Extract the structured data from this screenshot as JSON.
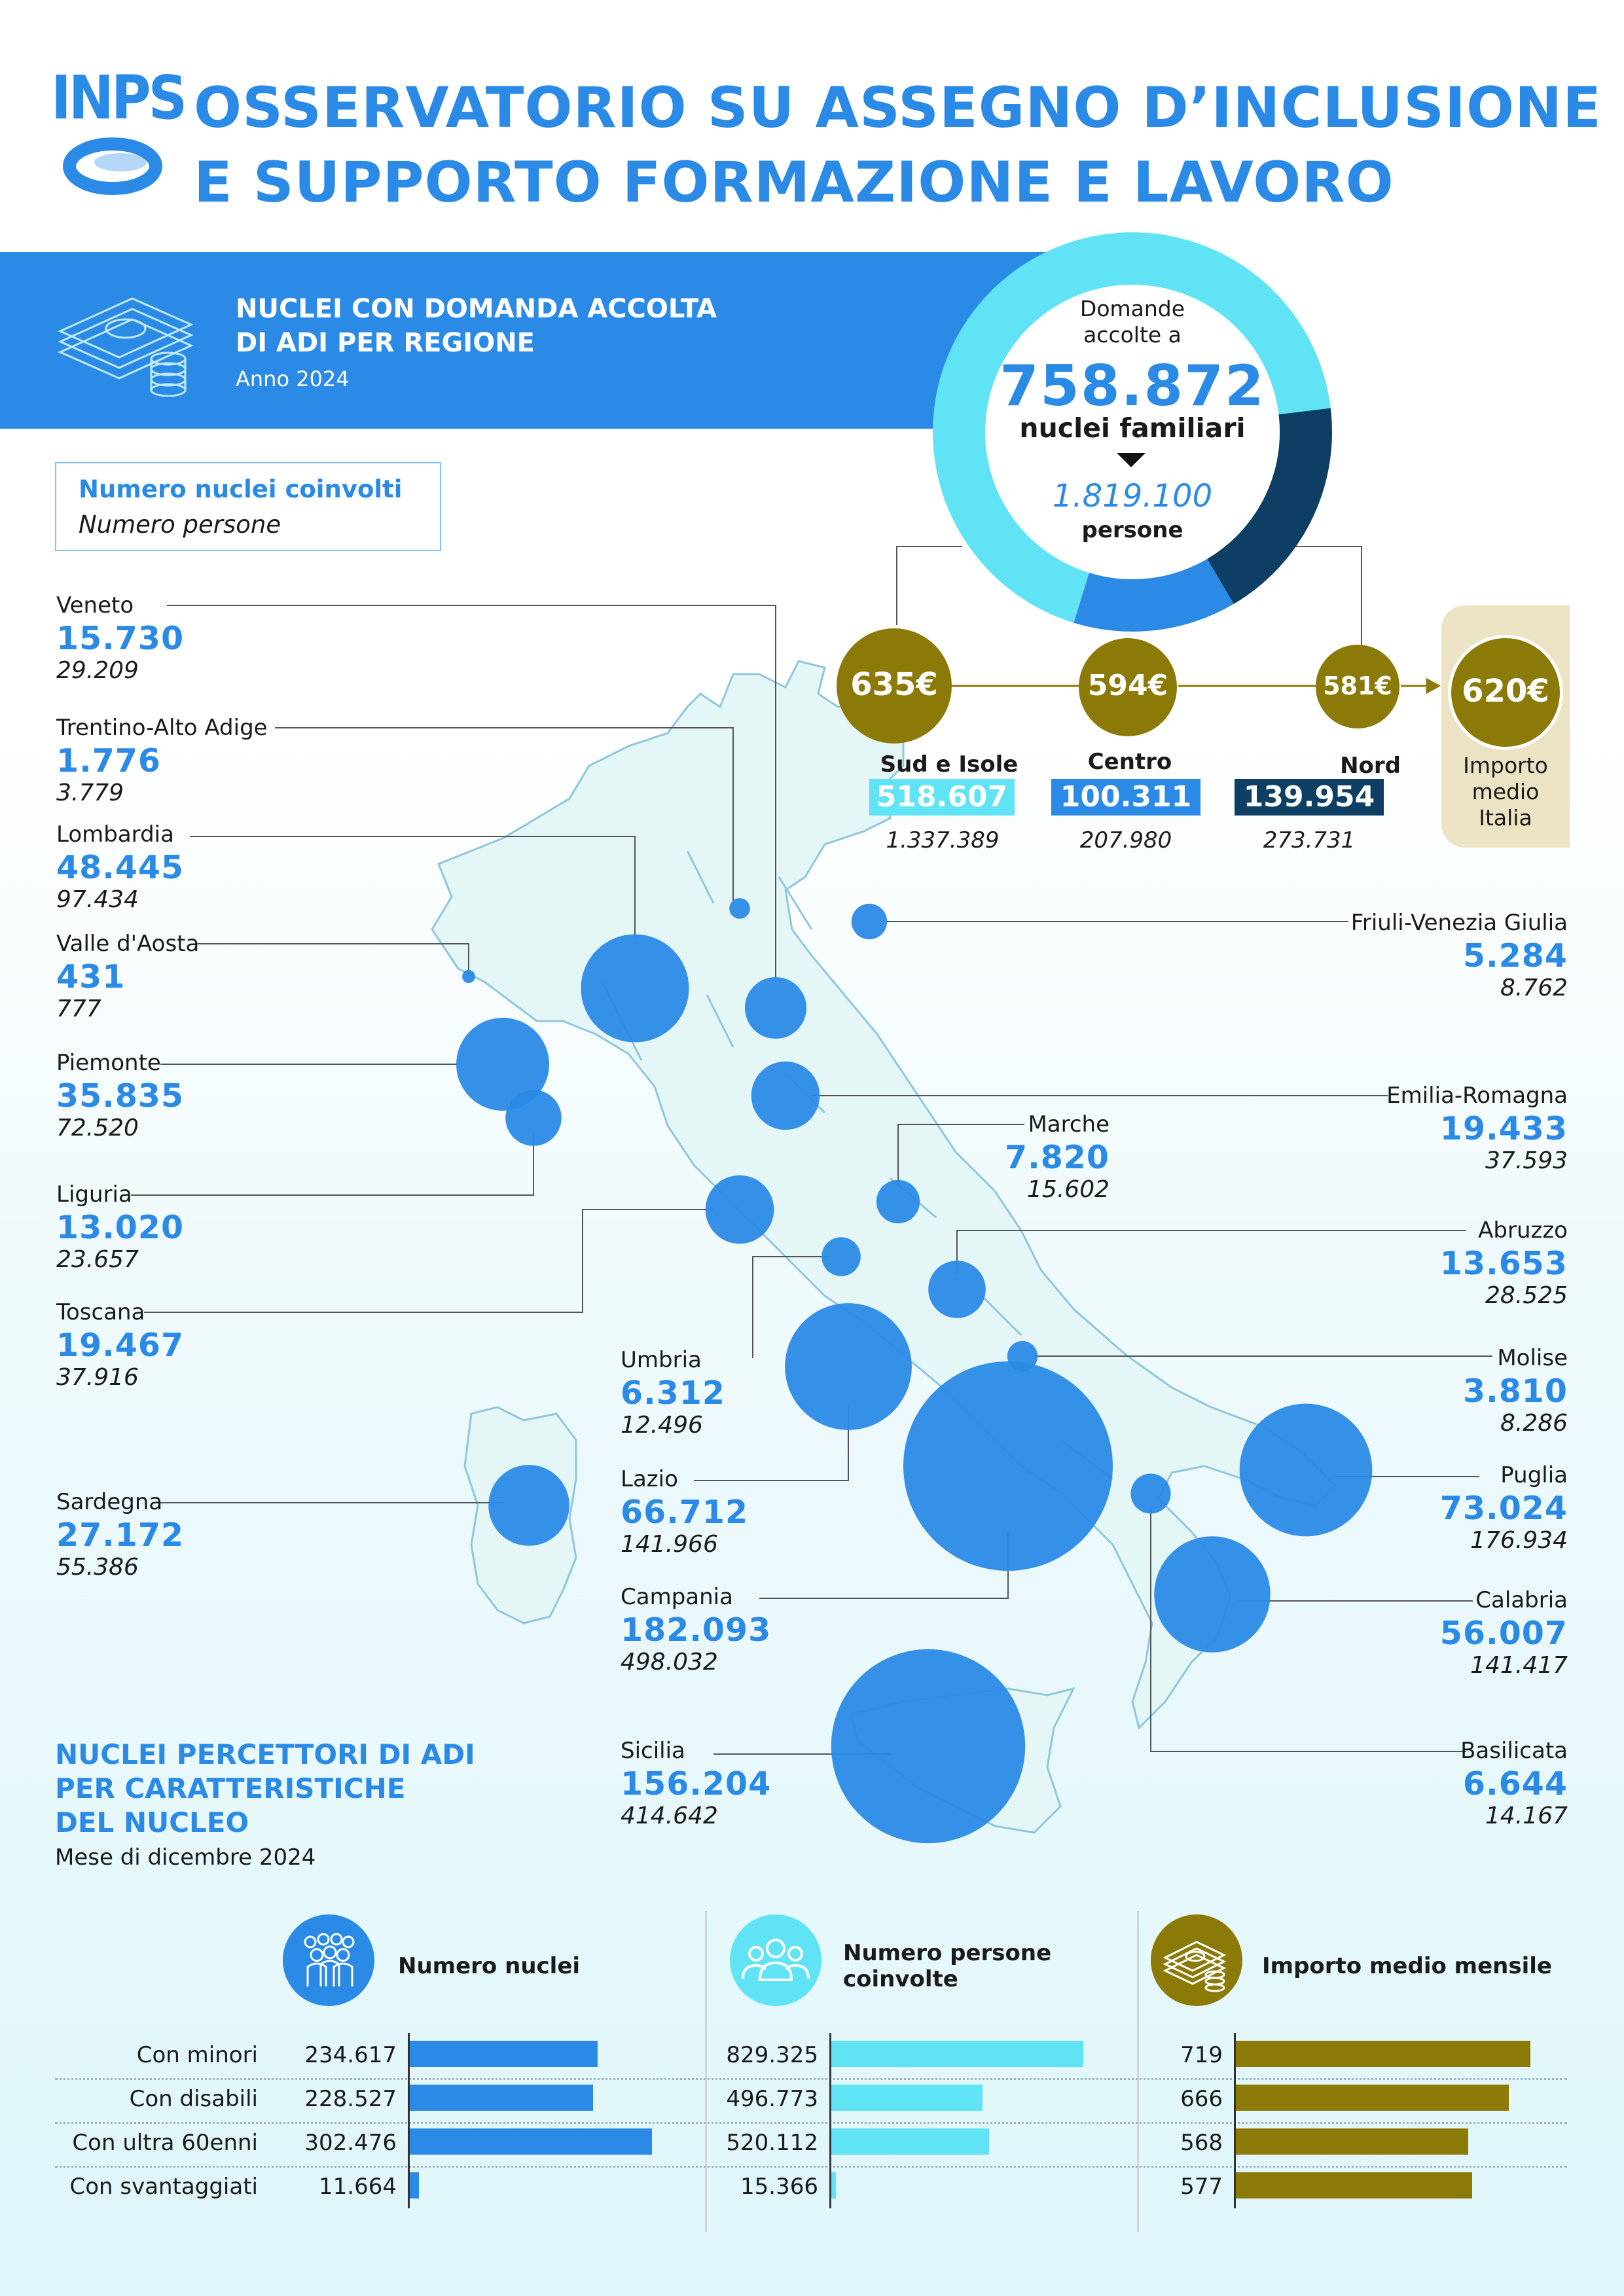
{
  "header": {
    "logo": "INPS",
    "title_line1": "OSSERVATORIO SU ASSEGNO D’INCLUSIONE",
    "title_line2": "E SUPPORTO FORMAZIONE E LAVORO"
  },
  "band": {
    "title_line1": "NUCLEI CON DOMANDA ACCOLTA",
    "title_line2": "DI ADI PER REGIONE",
    "year": "Anno 2024",
    "icon": "money-coins-icon"
  },
  "legend": {
    "line1": "Numero nuclei coinvolti",
    "line2": "Numero persone"
  },
  "donut": {
    "line1": "Domande",
    "line2": "accolte a",
    "total": "758.872",
    "unit": "nuclei familiari",
    "persons": "1.819.100",
    "persons_label": "persone"
  },
  "macro": {
    "sud": {
      "amount": "635€",
      "label": "Sud e Isole",
      "nuclei": "518.607",
      "persone": "1.337.389"
    },
    "centro": {
      "amount": "594€",
      "label": "Centro",
      "nuclei": "100.311",
      "persone": "207.980"
    },
    "nord": {
      "amount": "581€",
      "label": "Nord",
      "nuclei": "139.954",
      "persone": "273.731"
    },
    "italia": {
      "amount": "620€",
      "line1": "Importo",
      "line2": "medio",
      "line3": "Italia"
    }
  },
  "chart_data": [
    {
      "type": "bubble-map",
      "title": "NUCLEI CON DOMANDA ACCOLTA DI ADI PER REGIONE",
      "subtitle": "Anno 2024",
      "regions": [
        {
          "name": "Veneto",
          "nuclei": 15730,
          "nuclei_label": "15.730",
          "persone_label": "29.209"
        },
        {
          "name": "Trentino-Alto Adige",
          "nuclei": 1776,
          "nuclei_label": "1.776",
          "persone_label": "3.779"
        },
        {
          "name": "Lombardia",
          "nuclei": 48445,
          "nuclei_label": "48.445",
          "persone_label": "97.434"
        },
        {
          "name": "Valle d'Aosta",
          "nuclei": 431,
          "nuclei_label": "431",
          "persone_label": "777"
        },
        {
          "name": "Piemonte",
          "nuclei": 35835,
          "nuclei_label": "35.835",
          "persone_label": "72.520"
        },
        {
          "name": "Liguria",
          "nuclei": 13020,
          "nuclei_label": "13.020",
          "persone_label": "23.657"
        },
        {
          "name": "Toscana",
          "nuclei": 19467,
          "nuclei_label": "19.467",
          "persone_label": "37.916"
        },
        {
          "name": "Sardegna",
          "nuclei": 27172,
          "nuclei_label": "27.172",
          "persone_label": "55.386"
        },
        {
          "name": "Umbria",
          "nuclei": 6312,
          "nuclei_label": "6.312",
          "persone_label": "12.496"
        },
        {
          "name": "Lazio",
          "nuclei": 66712,
          "nuclei_label": "66.712",
          "persone_label": "141.966"
        },
        {
          "name": "Campania",
          "nuclei": 182093,
          "nuclei_label": "182.093",
          "persone_label": "498.032"
        },
        {
          "name": "Sicilia",
          "nuclei": 156204,
          "nuclei_label": "156.204",
          "persone_label": "414.642"
        },
        {
          "name": "Friuli-Venezia Giulia",
          "nuclei": 5284,
          "nuclei_label": "5.284",
          "persone_label": "8.762"
        },
        {
          "name": "Emilia-Romagna",
          "nuclei": 19433,
          "nuclei_label": "19.433",
          "persone_label": "37.593"
        },
        {
          "name": "Marche",
          "nuclei": 7820,
          "nuclei_label": "7.820",
          "persone_label": "15.602"
        },
        {
          "name": "Abruzzo",
          "nuclei": 13653,
          "nuclei_label": "13.653",
          "persone_label": "28.525"
        },
        {
          "name": "Molise",
          "nuclei": 3810,
          "nuclei_label": "3.810",
          "persone_label": "8.286"
        },
        {
          "name": "Puglia",
          "nuclei": 73024,
          "nuclei_label": "73.024",
          "persone_label": "176.934"
        },
        {
          "name": "Calabria",
          "nuclei": 56007,
          "nuclei_label": "56.007",
          "persone_label": "141.417"
        },
        {
          "name": "Basilicata",
          "nuclei": 6644,
          "nuclei_label": "6.644",
          "persone_label": "14.167"
        }
      ]
    },
    {
      "type": "pie",
      "title": "",
      "categories": [
        "Sud e Isole",
        "Centro",
        "Nord"
      ],
      "values": [
        518607,
        100311,
        139954
      ],
      "colors": [
        "#5fe3f5",
        "#2b8ae6",
        "#0c3f63"
      ]
    },
    {
      "type": "bar",
      "title": "NUCLEI PERCETTORI DI ADI PER CARATTERISTICHE DEL NUCLEO",
      "subtitle": "Mese di dicembre 2024",
      "categories": [
        "Con minori",
        "Con disabili",
        "Con ultra 60enni",
        "Con svantaggiati"
      ],
      "series": [
        {
          "name": "Numero nuclei",
          "values": [
            234617,
            228527,
            302476,
            11664
          ],
          "labels": [
            "234.617",
            "228.527",
            "302.476",
            "11.664"
          ],
          "color": "#2b8ae6",
          "icon": "people-group-icon"
        },
        {
          "name": "Numero persone coinvolte",
          "values": [
            829325,
            496773,
            520112,
            15366
          ],
          "labels": [
            "829.325",
            "496.773",
            "520.112",
            "15.366"
          ],
          "color": "#5fe3f5",
          "icon": "persons-icon"
        },
        {
          "name": "Importo medio mensile",
          "values": [
            719,
            666,
            568,
            577
          ],
          "labels": [
            "719",
            "666",
            "568",
            "577"
          ],
          "color": "#8c7a08",
          "icon": "money-coins-icon"
        }
      ]
    }
  ],
  "section2": {
    "title_line1": "NUCLEI PERCETTORI DI ADI",
    "title_line2": "PER CARATTERISTICHE",
    "title_line3": "DEL NUCLEO",
    "subtitle": "Mese di dicembre 2024",
    "col1_line1": "Numero nuclei",
    "col2_line1": "Numero persone",
    "col2_line2": "coinvolte",
    "col3_line1": "Importo medio mensile"
  },
  "colors": {
    "brand": "#2b8ae6",
    "cyan": "#5fe3f5",
    "navy": "#0c3f63",
    "olive": "#8c7a08",
    "sand": "#ece2c4"
  }
}
